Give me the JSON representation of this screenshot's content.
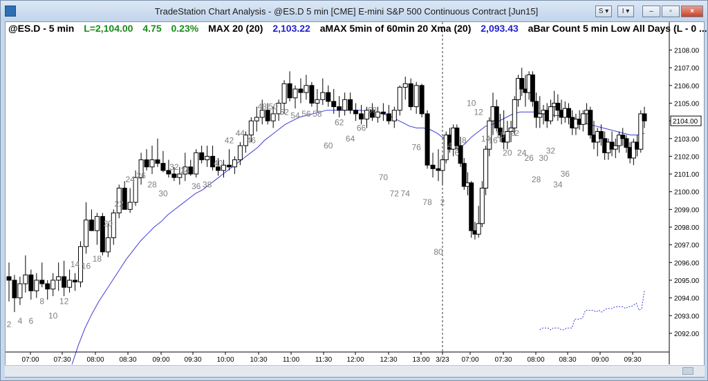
{
  "window": {
    "title": "TradeStation Chart Analysis - @ES.D 5 min [CME] E-mini S&P 500 Continuous Contract [Jun15]",
    "buttons": {
      "s_menu": "S ▾",
      "i_menu": "I ▾",
      "minimize": "–",
      "restore": "▫",
      "close": "×"
    }
  },
  "legend": {
    "symbol": "@ES.D - 5 min",
    "last": "L=2,104.00",
    "change": "4.75",
    "change_pct": "0.23%",
    "ind1_name": "MAX 20 (20)",
    "ind1_value": "2,103.22",
    "ind2_name": "aMAX 5min of 60min 20 Xma (20)",
    "ind2_value": "2,093.43",
    "ind3_name": "aBar Count 5 min Low All Days (L - 0 ..."
  },
  "colors": {
    "up_bar": "#ffffff",
    "down_bar": "#000000",
    "ema": "#3b3bd6",
    "count_labels": "#7f7f7f",
    "last_price_box": "#ffffff",
    "ind1_value": "#1f1fd0",
    "ind2_value": "#1f1fd0",
    "change": "#1a8a1a"
  },
  "chart_data": {
    "type": "candlestick",
    "y_axis": {
      "ticks": [
        "2108.00",
        "2107.00",
        "2106.00",
        "2105.00",
        "2104.00",
        "2103.00",
        "2102.00",
        "2101.00",
        "2100.00",
        "2099.00",
        "2098.00",
        "2097.00",
        "2096.00",
        "2095.00",
        "2094.00",
        "2093.00",
        "2092.00"
      ],
      "range": [
        2091.1,
        2108.8
      ],
      "last_price_label": "2104.00",
      "last_price": 2104.0
    },
    "x_axis": {
      "ticks": [
        "07:00",
        "07:30",
        "08:00",
        "08:30",
        "09:00",
        "09:30",
        "10:00",
        "10:30",
        "11:00",
        "11:30",
        "12:00",
        "12:30",
        "13:00",
        "3/23",
        "07:00",
        "07:30",
        "08:00",
        "08:30",
        "09:00",
        "09:30"
      ],
      "session_break_label": "3/23"
    },
    "bars": [
      [
        2095.2,
        2096.0,
        2093.8,
        2095.0
      ],
      [
        2095.0,
        2095.3,
        2093.2,
        2094.0
      ],
      [
        2094.0,
        2095.2,
        2093.6,
        2094.8
      ],
      [
        2094.8,
        2096.4,
        2094.3,
        2095.3
      ],
      [
        2095.3,
        2095.6,
        2093.9,
        2094.4
      ],
      [
        2094.4,
        2095.4,
        2094.0,
        2095.0
      ],
      [
        2095.0,
        2096.0,
        2094.6,
        2094.8
      ],
      [
        2094.8,
        2095.0,
        2093.9,
        2094.5
      ],
      [
        2094.5,
        2095.4,
        2094.1,
        2095.0
      ],
      [
        2095.0,
        2096.0,
        2094.4,
        2095.2
      ],
      [
        2095.2,
        2096.1,
        2094.1,
        2094.6
      ],
      [
        2094.6,
        2095.6,
        2094.3,
        2095.0
      ],
      [
        2095.0,
        2095.4,
        2094.4,
        2094.9
      ],
      [
        2094.9,
        2097.2,
        2094.6,
        2096.9
      ],
      [
        2096.9,
        2099.4,
        2096.5,
        2098.4
      ],
      [
        2098.4,
        2099.0,
        2097.8,
        2097.8
      ],
      [
        2097.8,
        2098.8,
        2097.0,
        2098.6
      ],
      [
        2098.6,
        2098.8,
        2096.4,
        2096.6
      ],
      [
        2096.6,
        2098.2,
        2096.3,
        2097.4
      ],
      [
        2097.4,
        2099.0,
        2097.0,
        2098.8
      ],
      [
        2098.8,
        2100.4,
        2098.5,
        2100.2
      ],
      [
        2100.2,
        2100.6,
        2099.0,
        2099.0
      ],
      [
        2099.0,
        2100.2,
        2098.8,
        2099.4
      ],
      [
        2099.4,
        2101.2,
        2099.2,
        2100.8
      ],
      [
        2100.8,
        2102.2,
        2100.4,
        2101.8
      ],
      [
        2101.8,
        2102.4,
        2101.2,
        2101.4
      ],
      [
        2101.4,
        2102.6,
        2101.0,
        2101.8
      ],
      [
        2101.8,
        2103.0,
        2101.4,
        2101.6
      ],
      [
        2101.6,
        2102.3,
        2101.1,
        2101.2
      ],
      [
        2101.2,
        2101.8,
        2100.8,
        2101.0
      ],
      [
        2101.0,
        2101.4,
        2100.6,
        2100.8
      ],
      [
        2100.8,
        2101.4,
        2100.4,
        2101.0
      ],
      [
        2101.0,
        2102.2,
        2100.6,
        2101.4
      ],
      [
        2101.4,
        2101.8,
        2100.9,
        2101.0
      ],
      [
        2101.0,
        2102.4,
        2100.8,
        2102.2
      ],
      [
        2102.2,
        2102.6,
        2101.6,
        2101.8
      ],
      [
        2101.8,
        2102.6,
        2101.4,
        2102.0
      ],
      [
        2102.0,
        2102.6,
        2101.2,
        2101.4
      ],
      [
        2101.4,
        2101.9,
        2100.9,
        2101.2
      ],
      [
        2101.2,
        2101.8,
        2100.8,
        2101.5
      ],
      [
        2101.5,
        2102.4,
        2101.2,
        2101.4
      ],
      [
        2101.4,
        2102.0,
        2101.0,
        2101.8
      ],
      [
        2101.8,
        2102.8,
        2101.5,
        2102.6
      ],
      [
        2102.6,
        2103.4,
        2102.2,
        2103.2
      ],
      [
        2103.2,
        2104.2,
        2102.8,
        2104.0
      ],
      [
        2104.0,
        2104.8,
        2103.4,
        2104.2
      ],
      [
        2104.2,
        2105.2,
        2103.8,
        2104.6
      ],
      [
        2104.6,
        2105.0,
        2103.8,
        2104.0
      ],
      [
        2104.0,
        2104.8,
        2103.6,
        2104.4
      ],
      [
        2104.4,
        2105.2,
        2104.0,
        2105.0
      ],
      [
        2105.0,
        2106.3,
        2104.4,
        2106.1
      ],
      [
        2106.1,
        2106.8,
        2105.1,
        2105.3
      ],
      [
        2105.3,
        2106.0,
        2104.7,
        2105.8
      ],
      [
        2105.8,
        2106.4,
        2105.0,
        2105.6
      ],
      [
        2105.6,
        2106.6,
        2105.2,
        2106.0
      ],
      [
        2106.0,
        2106.2,
        2104.8,
        2105.0
      ],
      [
        2105.0,
        2105.8,
        2104.5,
        2105.2
      ],
      [
        2105.2,
        2106.4,
        2104.9,
        2105.6
      ],
      [
        2105.6,
        2106.0,
        2104.8,
        2105.1
      ],
      [
        2105.1,
        2105.8,
        2104.4,
        2104.8
      ],
      [
        2104.8,
        2105.4,
        2104.2,
        2104.6
      ],
      [
        2104.6,
        2105.6,
        2104.3,
        2105.2
      ],
      [
        2105.2,
        2105.6,
        2104.4,
        2104.6
      ],
      [
        2104.6,
        2105.0,
        2104.0,
        2104.4
      ],
      [
        2104.4,
        2104.9,
        2103.8,
        2104.1
      ],
      [
        2104.1,
        2104.8,
        2103.6,
        2104.6
      ],
      [
        2104.6,
        2105.0,
        2104.0,
        2104.2
      ],
      [
        2104.2,
        2104.8,
        2103.9,
        2104.5
      ],
      [
        2104.5,
        2105.0,
        2104.0,
        2104.4
      ],
      [
        2104.4,
        2104.9,
        2103.8,
        2104.0
      ],
      [
        2104.0,
        2104.8,
        2103.6,
        2104.6
      ],
      [
        2104.6,
        2106.0,
        2104.3,
        2105.9
      ],
      [
        2105.9,
        2106.5,
        2105.2,
        2106.1
      ],
      [
        2106.1,
        2106.4,
        2104.6,
        2104.8
      ],
      [
        2104.8,
        2106.2,
        2104.4,
        2106.0
      ],
      [
        2106.0,
        2106.1,
        2104.2,
        2104.4
      ],
      [
        2104.4,
        2104.6,
        2101.3,
        2101.5
      ],
      [
        2101.5,
        2102.2,
        2100.8,
        2101.3
      ],
      [
        2101.3,
        2102.4,
        2100.6,
        2101.2
      ],
      [
        2101.2,
        2102.0,
        2100.4,
        2101.8
      ],
      [
        2101.8,
        2103.4,
        2101.6,
        2103.2
      ],
      [
        2103.2,
        2103.6,
        2102.2,
        2102.4
      ],
      [
        2102.4,
        2103.8,
        2102.0,
        2103.6
      ],
      [
        2103.6,
        2103.8,
        2102.4,
        2102.6
      ],
      [
        2102.6,
        2103.1,
        2101.4,
        2101.6
      ],
      [
        2101.6,
        2101.9,
        2100.1,
        2100.3
      ],
      [
        2100.3,
        2101.1,
        2099.8,
        2100.5
      ],
      [
        2100.5,
        2100.6,
        2097.4,
        2097.8
      ],
      [
        2097.8,
        2098.3,
        2097.3,
        2097.6
      ],
      [
        2097.6,
        2099.2,
        2097.4,
        2098.2
      ],
      [
        2098.2,
        2100.6,
        2098.0,
        2100.2
      ],
      [
        2100.2,
        2102.6,
        2099.8,
        2102.4
      ],
      [
        2102.4,
        2104.2,
        2102.0,
        2104.0
      ],
      [
        2104.0,
        2105.6,
        2103.2,
        2104.8
      ],
      [
        2104.8,
        2105.2,
        2103.4,
        2103.6
      ],
      [
        2103.6,
        2104.4,
        2102.8,
        2103.2
      ],
      [
        2103.2,
        2104.6,
        2102.4,
        2102.8
      ],
      [
        2102.8,
        2104.0,
        2102.4,
        2103.4
      ],
      [
        2103.4,
        2104.0,
        2102.8,
        2103.6
      ],
      [
        2103.6,
        2105.4,
        2103.2,
        2105.2
      ],
      [
        2105.2,
        2106.6,
        2104.8,
        2106.4
      ],
      [
        2106.4,
        2107.0,
        2105.4,
        2105.8
      ],
      [
        2105.8,
        2106.6,
        2104.8,
        2105.6
      ],
      [
        2105.6,
        2106.8,
        2105.2,
        2106.6
      ],
      [
        2106.6,
        2106.8,
        2104.8,
        2105.1
      ],
      [
        2105.1,
        2105.6,
        2103.6,
        2104.2
      ],
      [
        2104.2,
        2105.4,
        2103.6,
        2104.4
      ],
      [
        2104.4,
        2104.9,
        2103.8,
        2104.6
      ],
      [
        2104.6,
        2105.0,
        2103.6,
        2104.0
      ],
      [
        2104.0,
        2105.2,
        2103.8,
        2104.8
      ],
      [
        2104.8,
        2105.7,
        2104.2,
        2105.0
      ],
      [
        2105.0,
        2105.5,
        2104.0,
        2104.6
      ],
      [
        2104.6,
        2105.2,
        2103.8,
        2104.2
      ],
      [
        2104.2,
        2105.1,
        2103.9,
        2104.7
      ],
      [
        2104.7,
        2105.0,
        2103.8,
        2104.2
      ],
      [
        2104.2,
        2104.6,
        2103.2,
        2103.6
      ],
      [
        2103.6,
        2104.4,
        2103.2,
        2104.1
      ],
      [
        2104.1,
        2104.6,
        2103.5,
        2103.8
      ],
      [
        2103.8,
        2104.6,
        2103.4,
        2104.4
      ],
      [
        2104.4,
        2105.0,
        2103.8,
        2104.6
      ],
      [
        2104.6,
        2104.8,
        2103.0,
        2103.2
      ],
      [
        2103.2,
        2104.0,
        2102.4,
        2102.8
      ],
      [
        2102.8,
        2103.6,
        2102.0,
        2103.4
      ],
      [
        2103.4,
        2103.8,
        2102.6,
        2103.0
      ],
      [
        2103.0,
        2103.4,
        2101.8,
        2102.2
      ],
      [
        2102.2,
        2103.0,
        2101.8,
        2102.8
      ],
      [
        2102.8,
        2103.4,
        2102.0,
        2102.4
      ],
      [
        2102.4,
        2103.0,
        2101.9,
        2102.6
      ],
      [
        2102.6,
        2103.4,
        2102.2,
        2103.2
      ],
      [
        2103.2,
        2103.6,
        2102.6,
        2103.0
      ],
      [
        2103.0,
        2103.2,
        2102.2,
        2102.5
      ],
      [
        2102.5,
        2102.8,
        2101.6,
        2101.9
      ],
      [
        2101.9,
        2103.0,
        2101.5,
        2102.8
      ],
      [
        2102.8,
        2103.2,
        2102.0,
        2102.4
      ],
      [
        2102.4,
        2104.6,
        2102.2,
        2104.4
      ],
      [
        2104.4,
        2104.8,
        2103.6,
        2104.0
      ]
    ],
    "ema_values": [
      2089.0,
      2090.1,
      2091.3,
      2092.3,
      2093.1,
      2093.8,
      2094.4,
      2095.0,
      2095.6,
      2096.2,
      2096.7,
      2097.2,
      2097.6,
      2098.0,
      2098.3,
      2098.7,
      2099.0,
      2099.3,
      2099.6,
      2099.9,
      2100.1,
      2100.4,
      2100.7,
      2101.0,
      2101.3,
      2101.6,
      2101.9,
      2102.2,
      2102.5,
      2102.9,
      2103.2,
      2103.5,
      2103.8,
      2104.0,
      2104.2,
      2104.3,
      2104.4,
      2104.5,
      2104.6,
      2104.6,
      2104.6,
      2104.6,
      2104.6,
      2104.6,
      2104.5,
      2104.5,
      2104.4,
      2104.3,
      2104.1,
      2103.9,
      2103.7,
      2103.6,
      2103.6,
      2103.5,
      2103.3,
      2103.0,
      2102.6,
      2102.4,
      2102.7,
      2103.1,
      2103.4,
      2103.7,
      2103.8,
      2104.0,
      2104.2,
      2104.4,
      2104.5,
      2104.5,
      2104.5,
      2104.4,
      2104.4,
      2104.3,
      2104.3,
      2104.2,
      2104.1,
      2103.9,
      2103.8,
      2103.7,
      2103.6,
      2103.5,
      2103.4,
      2103.3,
      2103.2,
      2103.2,
      2103.3
    ],
    "count_labels": [
      "2",
      "4",
      "6",
      "8",
      "10",
      "12",
      "14",
      "16",
      "18",
      "20",
      "22",
      "24",
      "26",
      "28",
      "30",
      "32",
      "34",
      "36",
      "38",
      "40",
      "42",
      "44",
      "46",
      "48",
      "50",
      "52",
      "54",
      "56",
      "58",
      "60",
      "62",
      "64",
      "66",
      "68",
      "70",
      "72",
      "74",
      "76",
      "78",
      "80",
      "2",
      "4",
      "6",
      "8",
      "10",
      "12",
      "14",
      "16",
      "18",
      "20",
      "22",
      "24",
      "26",
      "28",
      "30",
      "32",
      "34",
      "36"
    ],
    "count_label_prices": [
      2092.5,
      2092.7,
      2092.7,
      2093.8,
      2093.0,
      2093.8,
      2095.9,
      2095.8,
      2096.2,
      2098.2,
      2099.3,
      2100.7,
      2100.9,
      2100.4,
      2099.9,
      2101.4,
      2101.2,
      2100.3,
      2100.4,
      2101.6,
      2102.9,
      2103.3,
      2102.9,
      2104.8,
      2104.8,
      2104.5,
      2104.3,
      2104.4,
      2104.4,
      2102.6,
      2103.9,
      2103.0,
      2103.6,
      2104.6,
      2100.8,
      2099.9,
      2099.9,
      2102.5,
      2099.4,
      2096.6,
      2099.4,
      2102.6,
      2102.2,
      2102.9,
      2105.0,
      2104.5,
      2103.0,
      2102.9,
      2103.2,
      2102.2,
      2103.3,
      2102.2,
      2101.9,
      2100.7,
      2101.9,
      2102.3,
      2100.4,
      2101.0
    ]
  },
  "bar_count_indicator": {
    "values": [
      2092.2,
      2092.3,
      2092.3,
      2092.3,
      2092.2,
      2092.3,
      2092.3,
      2092.3,
      2092.2,
      2092.2,
      2092.3,
      2092.3,
      2092.3,
      2092.8,
      2092.8,
      2092.8,
      2092.9,
      2093.3,
      2093.3,
      2093.3,
      2093.3,
      2093.2,
      2093.3,
      2093.2,
      2093.3,
      2093.4,
      2093.4,
      2093.4,
      2093.5,
      2093.5,
      2093.5,
      2093.5,
      2093.4,
      2093.5,
      2093.5,
      2093.6,
      2093.7,
      2093.3,
      2093.4,
      2094.4
    ],
    "start_bar": 106
  }
}
